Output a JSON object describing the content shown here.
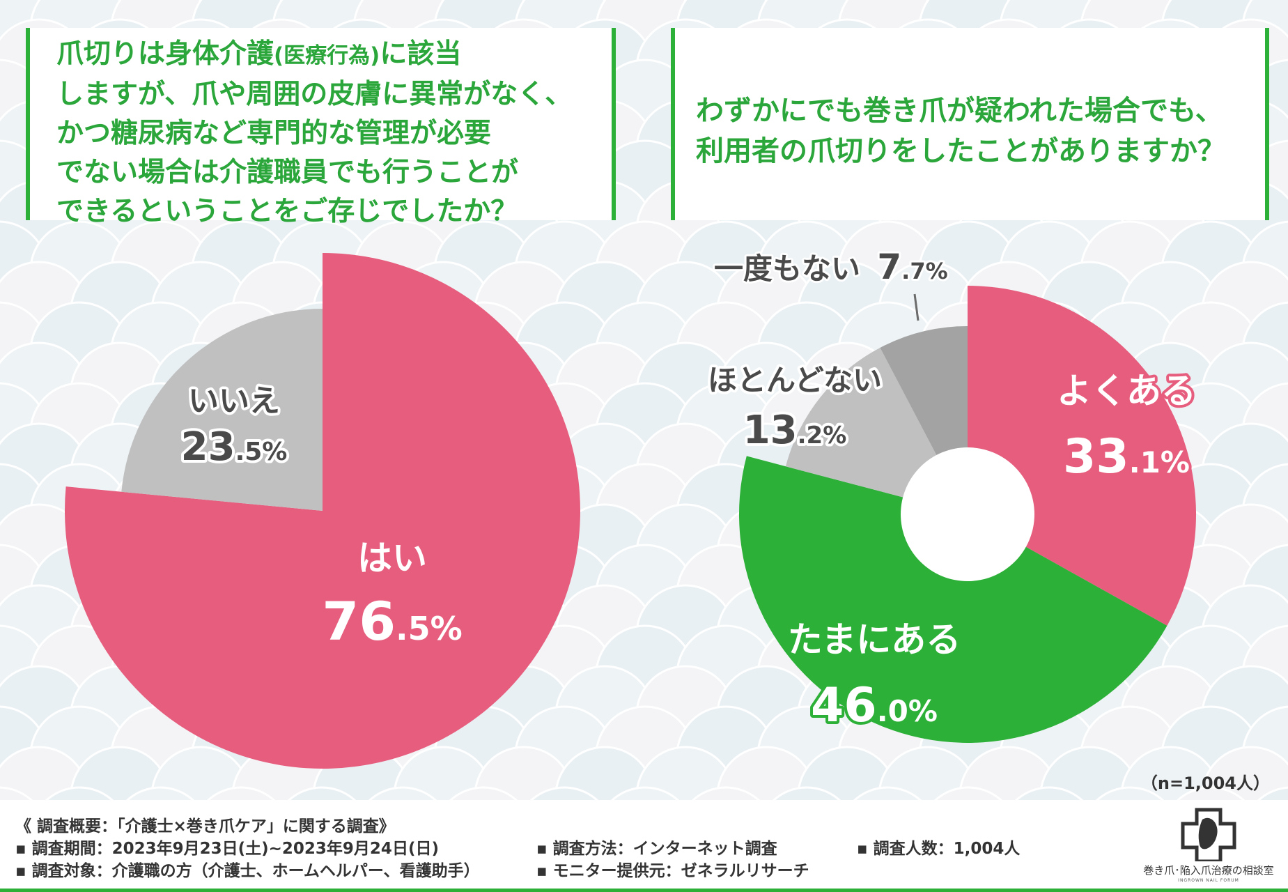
{
  "questions": {
    "left": {
      "lines": [
        {
          "main": "爪切りは身体介護",
          "paren": "(医療行為)",
          "rest": "に該当"
        },
        {
          "main": "しますが、爪や周囲の皮膚に異常がなく、"
        },
        {
          "main": "かつ糖尿病など専門的な管理が必要"
        },
        {
          "main": "でない場合は介護職員でも行うことが"
        },
        {
          "main": "できるということをご存じでしたか？"
        }
      ]
    },
    "right": {
      "lines": [
        "わずかにでも巻き爪が疑われた場合でも、",
        "利用者の爪切りをしたことがありますか？"
      ]
    }
  },
  "chart_data": [
    {
      "type": "pie",
      "title": "爪切りは身体介護(医療行為)に該当しますが、爪や周囲の皮膚に異常がなく、かつ糖尿病など専門的な管理が必要でない場合は介護職員でも行うことができるということをご存じでしたか？",
      "slices": [
        {
          "label": "はい",
          "value": 76.5,
          "display_int": "76",
          "display_dec": ".5%",
          "color": "#e65d7d"
        },
        {
          "label": "いいえ",
          "value": 23.5,
          "display_int": "23",
          "display_dec": ".5%",
          "color": "#c0c0c0"
        }
      ]
    },
    {
      "type": "pie",
      "subtype": "donut",
      "title": "わずかにでも巻き爪が疑われた場合でも、利用者の爪切りをしたことがありますか？",
      "slices": [
        {
          "label": "よくある",
          "value": 33.1,
          "display_int": "33",
          "display_dec": ".1%",
          "color": "#e65d7d"
        },
        {
          "label": "たまにある",
          "value": 46.0,
          "display_int": "46",
          "display_dec": ".0%",
          "color": "#2db038"
        },
        {
          "label": "ほとんどない",
          "value": 13.2,
          "display_int": "13",
          "display_dec": ".2%",
          "color": "#c0c0c0"
        },
        {
          "label": "一度もない",
          "value": 7.7,
          "display_int": "7",
          "display_dec": ".7%",
          "color": "#a3a3a3"
        }
      ]
    }
  ],
  "sample_note": "（n=1,004人）",
  "footer": {
    "title": "《 調査概要：「介護士×巻き爪ケア」に関する調査》",
    "period": "▪ 調査期間：2023年9月23日(土)~2023年9月24日(日)",
    "target": "▪ 調査対象：介護職の方（介護士、ホームヘルパー、看護助手）",
    "method": "▪ 調査方法：インターネット調査",
    "provider": "▪ モニター提供元：ゼネラルリサーチ",
    "count": "▪ 調査人数：1,004人"
  },
  "logo": {
    "name": "巻き爪･陥入爪治療の相談室",
    "sub": "INGROWN NAIL FORUM"
  },
  "colors": {
    "accent_green": "#2db038",
    "pink": "#e65d7d",
    "gray_light": "#c0c0c0",
    "gray_dark": "#a3a3a3"
  }
}
